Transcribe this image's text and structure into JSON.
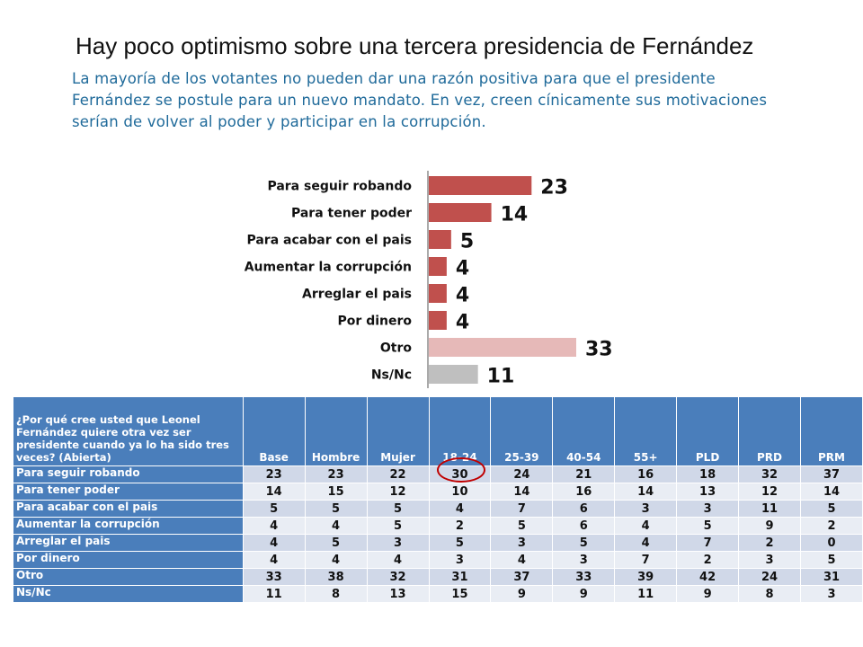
{
  "title": "Hay poco optimismo sobre una tercera presidencia de Fernández",
  "subtitle": "La mayoría de los votantes no pueden dar una razón positiva para que el presidente Fernández se postule para un nuevo mandato. En vez, creen cínicamente sus motivaciones serían de volver al poder y participar en la corrupción.",
  "colors": {
    "bar_primary": "#c0504d",
    "bar_other": "#e6b9b8",
    "bar_nsnc": "#bfbfbf",
    "table_header": "#4a7ebb",
    "row_odd": "#d0d8e8",
    "row_even": "#e9edf4",
    "subtitle_text": "#1f6a9a",
    "highlight_circle": "#c00000"
  },
  "chart_data": {
    "type": "bar",
    "orientation": "horizontal",
    "categories": [
      "Para seguir robando",
      "Para tener poder",
      "Para acabar con el pais",
      "Aumentar la corrupción",
      "Arreglar el pais",
      "Por dinero",
      "Otro",
      "Ns/Nc"
    ],
    "values": [
      23,
      14,
      5,
      4,
      4,
      4,
      33,
      11
    ],
    "bar_colors": [
      "#c0504d",
      "#c0504d",
      "#c0504d",
      "#c0504d",
      "#c0504d",
      "#c0504d",
      "#e6b9b8",
      "#bfbfbf"
    ],
    "xlim": [
      0,
      33
    ],
    "grid": false,
    "legend": "none"
  },
  "table": {
    "question": "¿Por qué cree usted que Leonel Fernández quiere otra vez ser presidente cuando ya lo ha sido tres veces? (Abierta)",
    "columns": [
      "Base",
      "Hombre",
      "Mujer",
      "18-24",
      "25-39",
      "40-54",
      "55+",
      "PLD",
      "PRD",
      "PRM"
    ],
    "rows": [
      {
        "label": "Para seguir robando",
        "values": [
          "23",
          "23",
          "22",
          "30",
          "24",
          "21",
          "16",
          "18",
          "32",
          "37"
        ]
      },
      {
        "label": "Para tener poder",
        "values": [
          "14",
          "15",
          "12",
          "10",
          "14",
          "16",
          "14",
          "13",
          "12",
          "14"
        ]
      },
      {
        "label": "Para acabar con el pais",
        "values": [
          "5",
          "5",
          "5",
          "4",
          "7",
          "6",
          "3",
          "3",
          "11",
          "5"
        ]
      },
      {
        "label": "Aumentar la corrupción",
        "values": [
          "4",
          "4",
          "5",
          "2",
          "5",
          "6",
          "4",
          "5",
          "9",
          "2"
        ]
      },
      {
        "label": "Arreglar el pais",
        "values": [
          "4",
          "5",
          "3",
          "5",
          "3",
          "5",
          "4",
          "7",
          "2",
          "0"
        ]
      },
      {
        "label": "Por dinero",
        "values": [
          "4",
          "4",
          "4",
          "3",
          "4",
          "3",
          "7",
          "2",
          "3",
          "5"
        ]
      },
      {
        "label": "Otro",
        "values": [
          "33",
          "38",
          "32",
          "31",
          "37",
          "33",
          "39",
          "42",
          "24",
          "31"
        ]
      },
      {
        "label": "Ns/Nc",
        "values": [
          "11",
          "8",
          "13",
          "15",
          "9",
          "9",
          "11",
          "9",
          "8",
          "3"
        ]
      }
    ],
    "highlight": {
      "row": 0,
      "column": 3
    }
  }
}
